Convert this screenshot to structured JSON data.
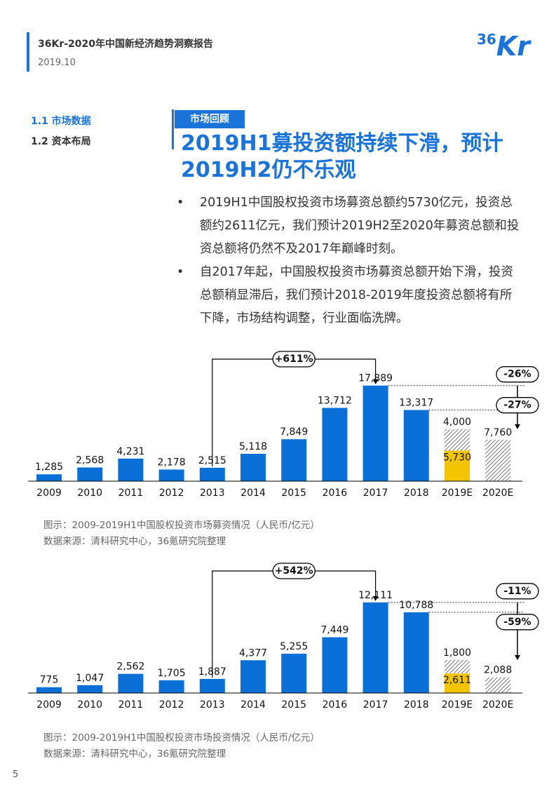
{
  "header": {
    "title": "36Kr-2020年中国新经济趋势洞察报告",
    "date": "2019.10",
    "logo_number": "36",
    "logo_text": "Kr"
  },
  "nav": [
    "1.1 市场数据",
    "1.2 资本布局"
  ],
  "section_tag": "市场回顾",
  "heading": "2019H1募投资额持续下滑，预计2019H2仍不乐观",
  "bullets": [
    "2019H1中国股权投资市场募资总额约5730亿元，投资总额约2611亿元，我们预计2019H2至2020年募资总额和投资总额将仍然不及2017年巅峰时刻。",
    "自2017年起，中国股权投资市场募资总额开始下滑，投资总额稍显滞后，我们预计2018-2019年度投资总额将有所下降，市场结构调整，行业面临洗牌。"
  ],
  "chart_data": [
    {
      "type": "bar",
      "stacked": true,
      "title": "图示：2009-2019H1中国股权投资市场募资情况（人民币/亿元）",
      "source": "数据来源：清科研究中心，36氪研究院整理",
      "categories": [
        "2009",
        "2010",
        "2011",
        "2012",
        "2013",
        "2014",
        "2015",
        "2016",
        "2017",
        "2018",
        "2019E",
        "2020E"
      ],
      "ylim": [
        0,
        21000
      ],
      "series": [
        {
          "color": "#0a6fd6",
          "values": [
            1285,
            2568,
            4231,
            2178,
            2515,
            5118,
            7849,
            13712,
            17889,
            13317,
            null,
            null
          ],
          "value_labels": [
            "1,285",
            "2,568",
            "4,231",
            "2,178",
            "2,515",
            "5,118",
            "7,849",
            "13,712",
            "17,889",
            "13,317",
            null,
            null
          ]
        },
        {
          "color": "#f2c500",
          "values": [
            null,
            null,
            null,
            null,
            null,
            null,
            null,
            null,
            null,
            null,
            5730,
            null
          ],
          "value_labels": [
            null,
            null,
            null,
            null,
            null,
            null,
            null,
            null,
            null,
            null,
            "5,730",
            null
          ]
        },
        {
          "color": "#555555",
          "hatch": true,
          "values": [
            null,
            null,
            null,
            null,
            null,
            null,
            null,
            null,
            null,
            null,
            4000,
            7760
          ],
          "value_labels": [
            null,
            null,
            null,
            null,
            null,
            null,
            null,
            null,
            null,
            null,
            "4,000",
            "7,760"
          ]
        }
      ],
      "annotations": [
        "+611%",
        "-26%",
        "-27%"
      ]
    },
    {
      "type": "bar",
      "stacked": true,
      "title": "图示：2009-2019H1中国股权投资市场投资情况（人民币/亿元）",
      "source": "数据来源：清科研究中心，36氪研究院整理",
      "categories": [
        "2009",
        "2010",
        "2011",
        "2012",
        "2013",
        "2014",
        "2015",
        "2016",
        "2017",
        "2018",
        "2019E",
        "2020E"
      ],
      "ylim": [
        0,
        15000
      ],
      "series": [
        {
          "color": "#0a6fd6",
          "values": [
            775,
            1047,
            2562,
            1705,
            1887,
            4377,
            5255,
            7449,
            12111,
            10788,
            null,
            null
          ],
          "value_labels": [
            "775",
            "1,047",
            "2,562",
            "1,705",
            "1,887",
            "4,377",
            "5,255",
            "7,449",
            "12,111",
            "10,788",
            null,
            null
          ]
        },
        {
          "color": "#f2c500",
          "values": [
            null,
            null,
            null,
            null,
            null,
            null,
            null,
            null,
            null,
            null,
            2611,
            null
          ],
          "value_labels": [
            null,
            null,
            null,
            null,
            null,
            null,
            null,
            null,
            null,
            null,
            "2,611",
            null
          ]
        },
        {
          "color": "#555555",
          "hatch": true,
          "values": [
            null,
            null,
            null,
            null,
            null,
            null,
            null,
            null,
            null,
            null,
            1800,
            2088
          ],
          "value_labels": [
            null,
            null,
            null,
            null,
            null,
            null,
            null,
            null,
            null,
            null,
            "1,800",
            "2,088"
          ]
        }
      ],
      "annotations": [
        "+542%",
        "-11%",
        "-59%"
      ]
    }
  ],
  "page_number": "5"
}
